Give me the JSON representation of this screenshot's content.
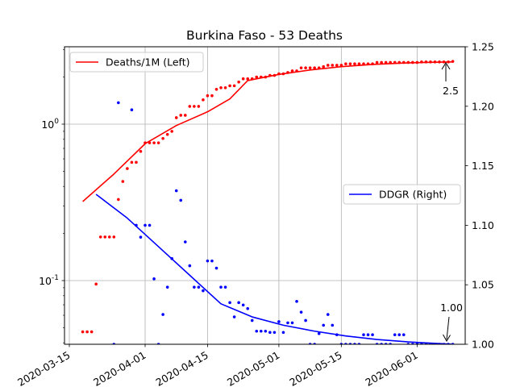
{
  "chart_data": {
    "type": "line",
    "title": "Burkina Faso - 53 Deaths",
    "xlabel": "",
    "ylabel_left": "",
    "ylabel_right": "",
    "grid": true,
    "x_ticks": [
      "2020-03-15",
      "2020-04-01",
      "2020-04-15",
      "2020-05-01",
      "2020-05-15",
      "2020-06-01"
    ],
    "y_left": {
      "scale": "log",
      "ticks": [
        {
          "value": 1,
          "label": "10^0"
        },
        {
          "value": 0.1,
          "label": "10^-1"
        }
      ]
    },
    "y_right": {
      "scale": "linear",
      "range": [
        1.0,
        1.25
      ],
      "ticks": [
        "1.00",
        "1.05",
        "1.10",
        "1.15",
        "1.20",
        "1.25"
      ]
    },
    "legends": [
      {
        "label": "Deaths/1M (Left)",
        "color": "#ff0000",
        "placement": "upper-left"
      },
      {
        "label": "DDGR (Right)",
        "color": "#0000ff",
        "placement": "center-right"
      }
    ],
    "annotations": [
      {
        "text": "2.5",
        "series": "Deaths/1M (Left)",
        "x": "2020-06-09",
        "y": 2.5
      },
      {
        "text": "1.00",
        "series": "DDGR (Right)",
        "x": "2020-06-09",
        "y": 1.0
      }
    ],
    "series": [
      {
        "name": "Deaths/1M (Left)",
        "axis": "left",
        "color": "#ff0000",
        "line": [
          [
            "2020-03-18",
            0.32
          ],
          [
            "2020-03-25",
            0.48
          ],
          [
            "2020-04-01",
            0.75
          ],
          [
            "2020-04-08",
            0.98
          ],
          [
            "2020-04-15",
            1.2
          ],
          [
            "2020-04-20",
            1.45
          ],
          [
            "2020-04-24",
            1.9
          ],
          [
            "2020-05-01",
            2.08
          ],
          [
            "2020-05-08",
            2.22
          ],
          [
            "2020-05-15",
            2.33
          ],
          [
            "2020-05-22",
            2.41
          ],
          [
            "2020-05-29",
            2.46
          ],
          [
            "2020-06-05",
            2.49
          ],
          [
            "2020-06-09",
            2.5
          ]
        ],
        "points": [
          [
            "2020-03-18",
            0.047
          ],
          [
            "2020-03-19",
            0.047
          ],
          [
            "2020-03-20",
            0.047
          ],
          [
            "2020-03-21",
            0.095
          ],
          [
            "2020-03-22",
            0.19
          ],
          [
            "2020-03-23",
            0.19
          ],
          [
            "2020-03-24",
            0.19
          ],
          [
            "2020-03-25",
            0.19
          ],
          [
            "2020-03-26",
            0.33
          ],
          [
            "2020-03-27",
            0.43
          ],
          [
            "2020-03-28",
            0.52
          ],
          [
            "2020-03-29",
            0.57
          ],
          [
            "2020-03-30",
            0.57
          ],
          [
            "2020-03-31",
            0.67
          ],
          [
            "2020-04-01",
            0.76
          ],
          [
            "2020-04-02",
            0.76
          ],
          [
            "2020-04-03",
            0.76
          ],
          [
            "2020-04-04",
            0.76
          ],
          [
            "2020-04-05",
            0.81
          ],
          [
            "2020-04-06",
            0.86
          ],
          [
            "2020-04-07",
            0.9
          ],
          [
            "2020-04-08",
            1.1
          ],
          [
            "2020-04-09",
            1.14
          ],
          [
            "2020-04-10",
            1.14
          ],
          [
            "2020-04-11",
            1.3
          ],
          [
            "2020-04-12",
            1.3
          ],
          [
            "2020-04-13",
            1.3
          ],
          [
            "2020-04-14",
            1.43
          ],
          [
            "2020-04-15",
            1.52
          ],
          [
            "2020-04-16",
            1.52
          ],
          [
            "2020-04-17",
            1.67
          ],
          [
            "2020-04-18",
            1.71
          ],
          [
            "2020-04-19",
            1.71
          ],
          [
            "2020-04-20",
            1.76
          ],
          [
            "2020-04-21",
            1.76
          ],
          [
            "2020-04-22",
            1.86
          ],
          [
            "2020-04-23",
            1.95
          ],
          [
            "2020-04-24",
            1.95
          ],
          [
            "2020-04-25",
            1.95
          ],
          [
            "2020-04-26",
            2.0
          ],
          [
            "2020-04-27",
            2.0
          ],
          [
            "2020-04-28",
            2.0
          ],
          [
            "2020-04-29",
            2.05
          ],
          [
            "2020-04-30",
            2.05
          ],
          [
            "2020-05-01",
            2.1
          ],
          [
            "2020-05-02",
            2.1
          ],
          [
            "2020-05-03",
            2.14
          ],
          [
            "2020-05-04",
            2.19
          ],
          [
            "2020-05-05",
            2.19
          ],
          [
            "2020-05-06",
            2.29
          ],
          [
            "2020-05-07",
            2.29
          ],
          [
            "2020-05-08",
            2.29
          ],
          [
            "2020-05-09",
            2.29
          ],
          [
            "2020-05-10",
            2.29
          ],
          [
            "2020-05-11",
            2.33
          ],
          [
            "2020-05-12",
            2.38
          ],
          [
            "2020-05-13",
            2.38
          ],
          [
            "2020-05-14",
            2.38
          ],
          [
            "2020-05-15",
            2.38
          ],
          [
            "2020-05-16",
            2.43
          ],
          [
            "2020-05-17",
            2.43
          ],
          [
            "2020-05-18",
            2.43
          ],
          [
            "2020-05-19",
            2.43
          ],
          [
            "2020-05-20",
            2.43
          ],
          [
            "2020-05-21",
            2.43
          ],
          [
            "2020-05-22",
            2.43
          ],
          [
            "2020-05-23",
            2.48
          ],
          [
            "2020-05-24",
            2.48
          ],
          [
            "2020-05-25",
            2.48
          ],
          [
            "2020-05-26",
            2.48
          ],
          [
            "2020-05-27",
            2.48
          ],
          [
            "2020-05-28",
            2.48
          ],
          [
            "2020-05-29",
            2.48
          ],
          [
            "2020-05-30",
            2.48
          ],
          [
            "2020-05-31",
            2.48
          ],
          [
            "2020-06-01",
            2.48
          ],
          [
            "2020-06-02",
            2.5
          ],
          [
            "2020-06-03",
            2.5
          ],
          [
            "2020-06-04",
            2.5
          ],
          [
            "2020-06-05",
            2.5
          ],
          [
            "2020-06-06",
            2.5
          ],
          [
            "2020-06-07",
            2.5
          ],
          [
            "2020-06-08",
            2.5
          ],
          [
            "2020-06-09",
            2.52
          ]
        ]
      },
      {
        "name": "DDGR (Right)",
        "axis": "right",
        "color": "#0000ff",
        "line": [
          [
            "2020-03-21",
            1.126
          ],
          [
            "2020-03-28",
            1.106
          ],
          [
            "2020-04-04",
            1.082
          ],
          [
            "2020-04-11",
            1.058
          ],
          [
            "2020-04-18",
            1.034
          ],
          [
            "2020-04-25",
            1.023
          ],
          [
            "2020-05-02",
            1.016
          ],
          [
            "2020-05-09",
            1.011
          ],
          [
            "2020-05-16",
            1.007
          ],
          [
            "2020-05-23",
            1.004
          ],
          [
            "2020-05-30",
            1.002
          ],
          [
            "2020-06-09",
            1.0
          ]
        ],
        "points": [
          [
            "2020-03-25",
            1.0
          ],
          [
            "2020-03-26",
            1.203
          ],
          [
            "2020-03-29",
            1.197
          ],
          [
            "2020-03-30",
            1.1
          ],
          [
            "2020-03-31",
            1.09
          ],
          [
            "2020-04-01",
            1.1
          ],
          [
            "2020-04-02",
            1.1
          ],
          [
            "2020-04-03",
            1.055
          ],
          [
            "2020-04-04",
            1.0
          ],
          [
            "2020-04-05",
            1.025
          ],
          [
            "2020-04-06",
            1.048
          ],
          [
            "2020-04-07",
            1.072
          ],
          [
            "2020-04-08",
            1.129
          ],
          [
            "2020-04-09",
            1.121
          ],
          [
            "2020-04-10",
            1.086
          ],
          [
            "2020-04-11",
            1.066
          ],
          [
            "2020-04-12",
            1.048
          ],
          [
            "2020-04-13",
            1.048
          ],
          [
            "2020-04-14",
            1.045
          ],
          [
            "2020-04-15",
            1.07
          ],
          [
            "2020-04-16",
            1.07
          ],
          [
            "2020-04-17",
            1.064
          ],
          [
            "2020-04-18",
            1.048
          ],
          [
            "2020-04-19",
            1.048
          ],
          [
            "2020-04-20",
            1.035
          ],
          [
            "2020-04-21",
            1.023
          ],
          [
            "2020-04-22",
            1.035
          ],
          [
            "2020-04-23",
            1.033
          ],
          [
            "2020-04-24",
            1.03
          ],
          [
            "2020-04-25",
            1.02
          ],
          [
            "2020-04-26",
            1.011
          ],
          [
            "2020-04-27",
            1.011
          ],
          [
            "2020-04-28",
            1.011
          ],
          [
            "2020-04-29",
            1.01
          ],
          [
            "2020-04-30",
            1.01
          ],
          [
            "2020-05-01",
            1.019
          ],
          [
            "2020-05-02",
            1.01
          ],
          [
            "2020-05-03",
            1.018
          ],
          [
            "2020-05-04",
            1.018
          ],
          [
            "2020-05-05",
            1.036
          ],
          [
            "2020-05-06",
            1.027
          ],
          [
            "2020-05-07",
            1.02
          ],
          [
            "2020-05-08",
            1.0
          ],
          [
            "2020-05-09",
            1.0
          ],
          [
            "2020-05-10",
            1.009
          ],
          [
            "2020-05-11",
            1.016
          ],
          [
            "2020-05-12",
            1.025
          ],
          [
            "2020-05-13",
            1.016
          ],
          [
            "2020-05-14",
            1.008
          ],
          [
            "2020-05-15",
            1.0
          ],
          [
            "2020-05-16",
            1.0
          ],
          [
            "2020-05-17",
            1.0
          ],
          [
            "2020-05-18",
            1.0
          ],
          [
            "2020-05-19",
            1.0
          ],
          [
            "2020-05-20",
            1.008
          ],
          [
            "2020-05-21",
            1.008
          ],
          [
            "2020-05-22",
            1.008
          ],
          [
            "2020-05-23",
            1.0
          ],
          [
            "2020-05-24",
            1.0
          ],
          [
            "2020-05-25",
            1.0
          ],
          [
            "2020-05-26",
            1.0
          ],
          [
            "2020-05-27",
            1.008
          ],
          [
            "2020-05-28",
            1.008
          ],
          [
            "2020-05-29",
            1.008
          ],
          [
            "2020-05-30",
            1.0
          ],
          [
            "2020-05-31",
            1.0
          ],
          [
            "2020-06-01",
            1.0
          ],
          [
            "2020-06-02",
            1.0
          ],
          [
            "2020-06-03",
            1.0
          ],
          [
            "2020-06-04",
            1.0
          ],
          [
            "2020-06-05",
            1.0
          ],
          [
            "2020-06-06",
            1.0
          ],
          [
            "2020-06-07",
            1.0
          ],
          [
            "2020-06-08",
            1.0
          ],
          [
            "2020-06-09",
            1.0
          ]
        ]
      }
    ]
  }
}
